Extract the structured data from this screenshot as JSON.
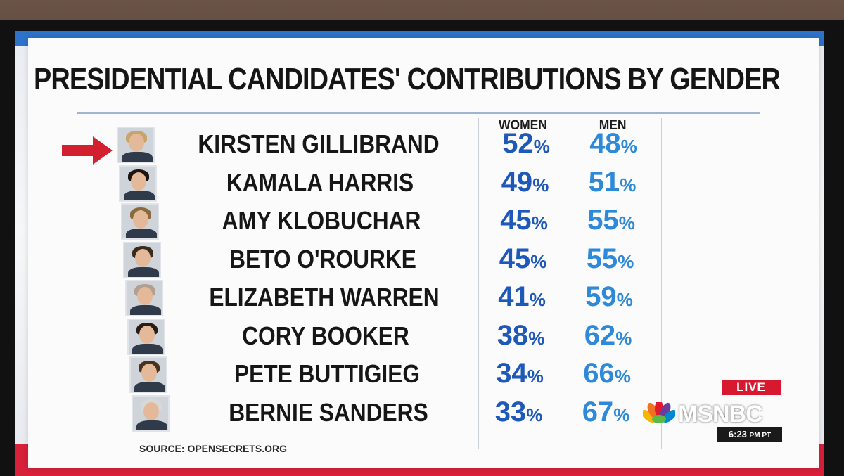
{
  "chart_data": {
    "type": "table",
    "title": "PRESIDENTIAL CANDIDATES' CONTRIBUTIONS BY GENDER",
    "columns": [
      "WOMEN",
      "MEN"
    ],
    "rows": [
      {
        "name": "KIRSTEN GILLIBRAND",
        "women": "52",
        "men": "48",
        "highlighted": true
      },
      {
        "name": "KAMALA HARRIS",
        "women": "49",
        "men": "51"
      },
      {
        "name": "AMY KLOBUCHAR",
        "women": "45",
        "men": "55"
      },
      {
        "name": "BETO O'ROURKE",
        "women": "45",
        "men": "55"
      },
      {
        "name": "ELIZABETH WARREN",
        "women": "41",
        "men": "59"
      },
      {
        "name": "CORY BOOKER",
        "women": "38",
        "men": "62"
      },
      {
        "name": "PETE BUTTIGIEG",
        "women": "34",
        "men": "66"
      },
      {
        "name": "BERNIE SANDERS",
        "women": "33",
        "men": "67"
      }
    ],
    "unit": "%",
    "source": "SOURCE: OPENSECRETS.ORG"
  },
  "broadcast": {
    "live_label": "LIVE",
    "network": "MSNBC",
    "time": "6:23",
    "timezone": "PM PT"
  },
  "colors": {
    "women_pct": "#1e58b8",
    "men_pct": "#2e8ad8",
    "arrow": "#d22030",
    "live_bg": "#d8182f",
    "top_band": "#2d73c9",
    "bottom_band": "#d7203a"
  },
  "icons": {
    "pointer": "right-arrow-icon",
    "network_logo": "peacock-icon"
  }
}
